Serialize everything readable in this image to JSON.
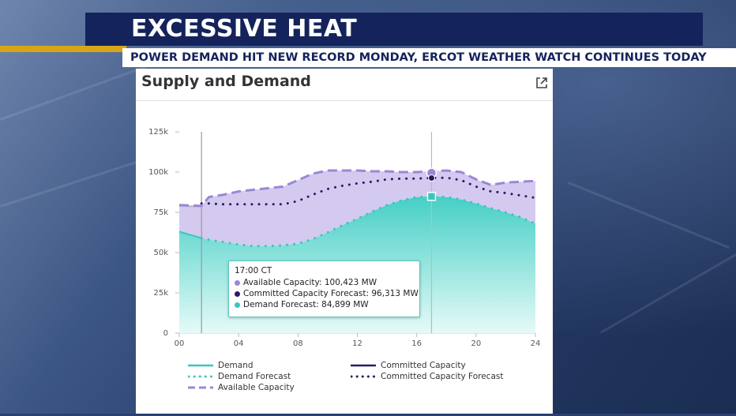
{
  "broadcast": {
    "headline": "EXCESSIVE HEAT",
    "ticker": "POWER DEMAND HIT NEW RECORD MONDAY, ERCOT WEATHER WATCH CONTINUES TODAY",
    "accent_color": "#d8a516",
    "banner_color": "#14235b"
  },
  "panel": {
    "title": "Supply and Demand",
    "popout_icon": "external-link-icon"
  },
  "tooltip": {
    "time": "17:00 CT",
    "rows": [
      {
        "label": "Available Capacity: ",
        "value": "100,423 MW",
        "color": "#9b87d6"
      },
      {
        "label": "Committed Capacity Forecast: ",
        "value": "96,313 MW",
        "color": "#2b1a66"
      },
      {
        "label": "Demand Forecast: ",
        "value": "84,899 MW",
        "color": "#3cc5bd"
      }
    ]
  },
  "chart_data": {
    "type": "area",
    "title": "Supply and Demand",
    "xlabel": "",
    "ylabel": "",
    "x_ticks": [
      "00",
      "04",
      "08",
      "12",
      "16",
      "20",
      "24"
    ],
    "y_ticks": [
      "0",
      "25k",
      "50k",
      "75k",
      "100k",
      "125k"
    ],
    "xlim": [
      0,
      24
    ],
    "ylim": [
      0,
      125000
    ],
    "grid": false,
    "legend_position": "bottom",
    "current_hour": 1.5,
    "hover_hour": 17,
    "series": [
      {
        "name": "Demand",
        "color": "#3cc5bd",
        "style": "solid",
        "x": [
          0,
          1.5
        ],
        "values": [
          63000,
          59000
        ]
      },
      {
        "name": "Demand Forecast",
        "color": "#3cc5bd",
        "style": "dotted",
        "x": [
          1.5,
          2,
          3,
          4,
          5,
          6,
          7,
          8,
          9,
          10,
          11,
          12,
          13,
          14,
          15,
          16,
          17,
          18,
          19,
          20,
          21,
          22,
          23,
          24
        ],
        "values": [
          59000,
          58000,
          56500,
          55000,
          54000,
          54000,
          54500,
          55500,
          58500,
          62500,
          67000,
          71000,
          75500,
          79500,
          82500,
          84500,
          84900,
          84500,
          83000,
          80500,
          77500,
          75000,
          72000,
          68000
        ]
      },
      {
        "name": "Committed Capacity",
        "color": "#2b1a66",
        "style": "solid",
        "x": [
          0,
          1.5
        ],
        "values": [
          79000,
          78500
        ]
      },
      {
        "name": "Committed Capacity Forecast",
        "color": "#2b1a66",
        "style": "dotted",
        "x": [
          1.5,
          2,
          3,
          4,
          5,
          6,
          7,
          8,
          9,
          10,
          11,
          12,
          13,
          14,
          15,
          16,
          17,
          18,
          19,
          20,
          21,
          22,
          23,
          24
        ],
        "values": [
          80500,
          80500,
          80000,
          80000,
          80000,
          80000,
          80000,
          82000,
          86000,
          89500,
          91500,
          93000,
          94000,
          95500,
          96000,
          96000,
          96313,
          96500,
          95000,
          91000,
          88000,
          87000,
          85500,
          84000
        ]
      },
      {
        "name": "Available Capacity",
        "color": "#9b87d6",
        "style": "dashed",
        "x": [
          0,
          1.5,
          2,
          3,
          4,
          5,
          6,
          7,
          8,
          9,
          10,
          11,
          12,
          13,
          14,
          15,
          16,
          17,
          18,
          19,
          20,
          21,
          22,
          23,
          24
        ],
        "values": [
          79500,
          79000,
          84500,
          86000,
          88000,
          89000,
          90000,
          91000,
          95000,
          99000,
          101000,
          101000,
          101000,
          100500,
          100500,
          100000,
          100000,
          100423,
          101000,
          100000,
          95500,
          92000,
          93500,
          94000,
          94500
        ]
      }
    ]
  }
}
